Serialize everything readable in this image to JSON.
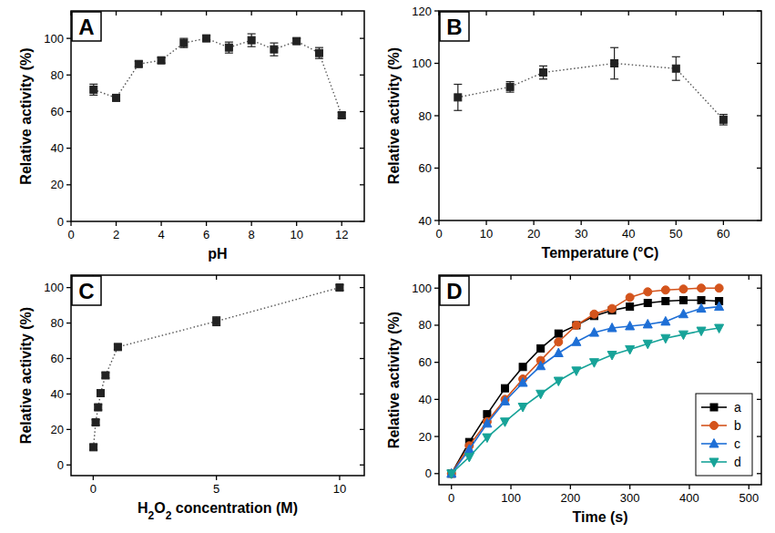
{
  "chart_data": [
    {
      "type": "line",
      "title": "A",
      "xlabel": "pH",
      "ylabel": "Relative activity (%)",
      "xlim": [
        0,
        13
      ],
      "ylim": [
        0,
        115
      ],
      "xticks": [
        0,
        2,
        4,
        6,
        8,
        10,
        12
      ],
      "yticks": [
        0,
        20,
        40,
        60,
        80,
        100
      ],
      "x": [
        1,
        2,
        3,
        4,
        5,
        6,
        7,
        8,
        9,
        10,
        11,
        12
      ],
      "values": [
        72,
        67.5,
        86,
        88,
        97.5,
        100,
        95,
        99,
        94,
        98.5,
        92,
        58
      ],
      "errors": [
        3,
        1.5,
        1.5,
        1.5,
        2.5,
        1.5,
        3,
        3.5,
        3.5,
        1.5,
        3,
        1.5
      ],
      "color": "#222222",
      "marker": "square",
      "line_style": "dotted"
    },
    {
      "type": "line",
      "title": "B",
      "xlabel": "Temperature (°C)",
      "ylabel": "Relative activity (%)",
      "xlim": [
        0,
        68
      ],
      "ylim": [
        40,
        120
      ],
      "xticks": [
        0,
        10,
        20,
        30,
        40,
        50,
        60
      ],
      "yticks": [
        40,
        60,
        80,
        100,
        120
      ],
      "x": [
        4,
        15,
        22,
        37,
        50,
        60
      ],
      "values": [
        87,
        91,
        96.5,
        100,
        98,
        78.5
      ],
      "errors": [
        5,
        2,
        2.5,
        6,
        4.5,
        2
      ],
      "color": "#222222",
      "marker": "square",
      "line_style": "dotted"
    },
    {
      "type": "line",
      "title": "C",
      "xlabel": "H2O2 concentration (M)",
      "ylabel": "Relative activity (%)",
      "xlim": [
        -0.9,
        11
      ],
      "ylim": [
        -6,
        107
      ],
      "xticks": [
        0,
        5,
        10
      ],
      "yticks": [
        0,
        20,
        40,
        60,
        80,
        100
      ],
      "x": [
        0.01,
        0.1,
        0.2,
        0.3,
        0.5,
        1,
        5,
        10
      ],
      "values": [
        10,
        24,
        32.5,
        40.5,
        50.5,
        66.5,
        81,
        100
      ],
      "errors": [
        1.5,
        1.5,
        1.5,
        1.5,
        1.5,
        1.5,
        2.5,
        1.5
      ],
      "color": "#222222",
      "marker": "square",
      "line_style": "dotted"
    },
    {
      "type": "line",
      "title": "D",
      "xlabel": "Time (s)",
      "ylabel": "Relative activity (%)",
      "xlim": [
        -21,
        521
      ],
      "ylim": [
        -6,
        107
      ],
      "xticks": [
        0,
        100,
        200,
        300,
        400,
        500
      ],
      "yticks": [
        0,
        20,
        40,
        60,
        80,
        100
      ],
      "legend": "lower right",
      "x": [
        0,
        30,
        60,
        90,
        120,
        150,
        180,
        210,
        240,
        270,
        300,
        330,
        360,
        390,
        420,
        450
      ],
      "series": [
        {
          "name": "a",
          "color": "#000000",
          "marker": "square",
          "line_style": "solid",
          "values": [
            0,
            17,
            32,
            46,
            57.5,
            67.5,
            75.5,
            80,
            85,
            88,
            90,
            92,
            93,
            93.5,
            93.5,
            93
          ]
        },
        {
          "name": "b",
          "color": "#d4541c",
          "marker": "circle",
          "line_style": "solid",
          "values": [
            0,
            15,
            28,
            40,
            51,
            61,
            71,
            80,
            86,
            89,
            95,
            98,
            99,
            99.5,
            100,
            100
          ]
        },
        {
          "name": "c",
          "color": "#1e6fd6",
          "marker": "triangle",
          "line_style": "solid",
          "values": [
            0,
            13,
            27,
            39,
            49,
            58,
            65,
            71,
            76,
            78.5,
            79.5,
            80.5,
            82,
            86,
            89,
            90
          ]
        },
        {
          "name": "d",
          "color": "#17a398",
          "marker": "triangle-down",
          "line_style": "solid",
          "values": [
            0,
            9,
            19.5,
            28,
            36,
            43,
            50,
            55.5,
            60,
            64,
            67,
            70,
            73,
            75,
            77,
            78.5
          ]
        }
      ]
    }
  ]
}
